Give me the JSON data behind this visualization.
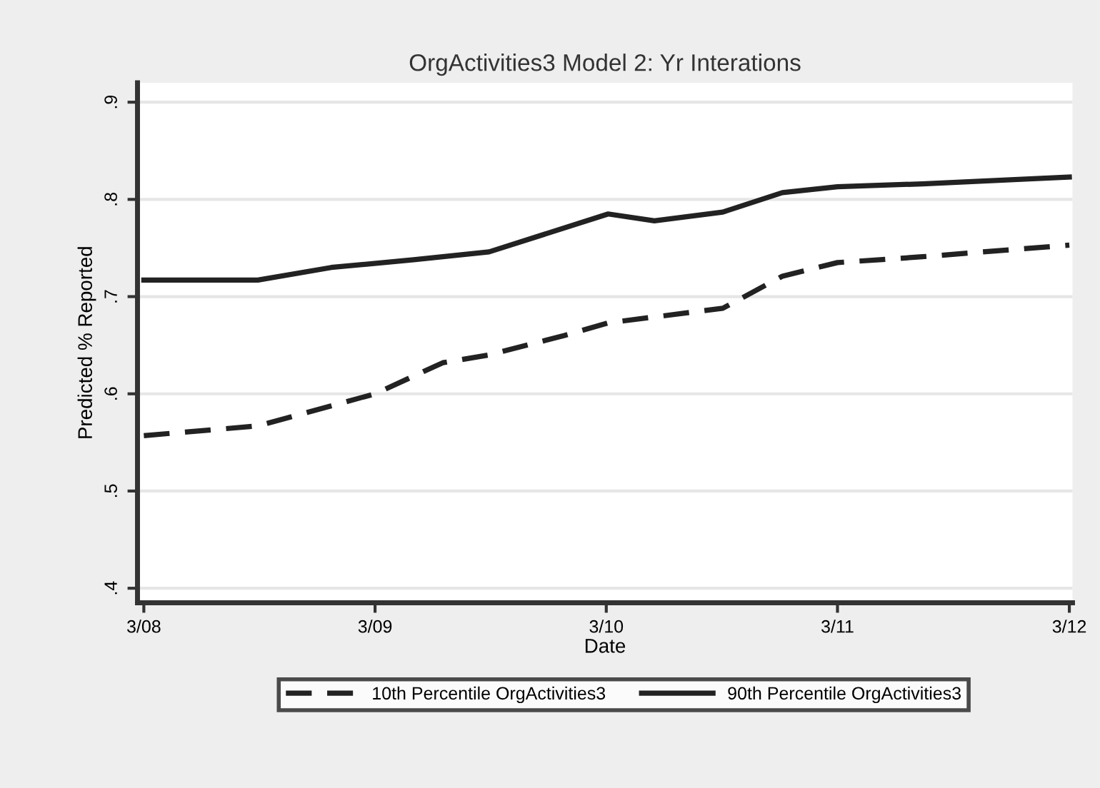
{
  "chart_data": {
    "type": "line",
    "title": "OrgActivities3 Model 2: Yr Interations",
    "xlabel": "Date",
    "ylabel": "Predicted % Reported",
    "series": [
      {
        "name": "10th Percentile OrgActivities3",
        "color": "#222222",
        "line_style": "dashed",
        "x": [
          "2008-03-01",
          "2008-08-28",
          "2009-03-01",
          "2009-06-16",
          "2009-08-28",
          "2009-12-25",
          "2010-03-04",
          "2010-09-01",
          "2010-12-04",
          "2011-03-01",
          "2011-07-13",
          "2012-03-01"
        ],
        "values": [
          0.557,
          0.567,
          0.6,
          0.632,
          0.64,
          0.66,
          0.673,
          0.688,
          0.721,
          0.735,
          0.741,
          0.753
        ]
      },
      {
        "name": "90th Percentile OrgActivities3",
        "color": "#222222",
        "line_style": "solid",
        "x": [
          "2008-03-01",
          "2008-08-28",
          "2008-12-22",
          "2009-05-01",
          "2009-08-28",
          "2010-03-04",
          "2010-05-16",
          "2010-09-01",
          "2010-12-04",
          "2011-03-01",
          "2011-07-13",
          "2012-03-01"
        ],
        "values": [
          0.717,
          0.717,
          0.73,
          0.738,
          0.746,
          0.785,
          0.778,
          0.787,
          0.807,
          0.813,
          0.816,
          0.823
        ]
      }
    ],
    "xlim": [
      "2008-02-20",
      "2012-03-06"
    ],
    "xticks": [
      {
        "value": "2008-03-01",
        "label": "3/08"
      },
      {
        "value": "2009-03-01",
        "label": "3/09"
      },
      {
        "value": "2010-03-01",
        "label": "3/10"
      },
      {
        "value": "2011-03-01",
        "label": "3/11"
      },
      {
        "value": "2012-03-01",
        "label": "3/12"
      }
    ],
    "ylim": [
      0.385,
      0.92
    ],
    "yticks": [
      {
        "value": 0.4,
        "label": ".4"
      },
      {
        "value": 0.5,
        "label": ".5"
      },
      {
        "value": 0.6,
        "label": ".6"
      },
      {
        "value": 0.7,
        "label": ".7"
      },
      {
        "value": 0.8,
        "label": ".8"
      },
      {
        "value": 0.9,
        "label": ".9"
      }
    ],
    "grid": "y",
    "legend": "bottom",
    "marker": "none"
  }
}
